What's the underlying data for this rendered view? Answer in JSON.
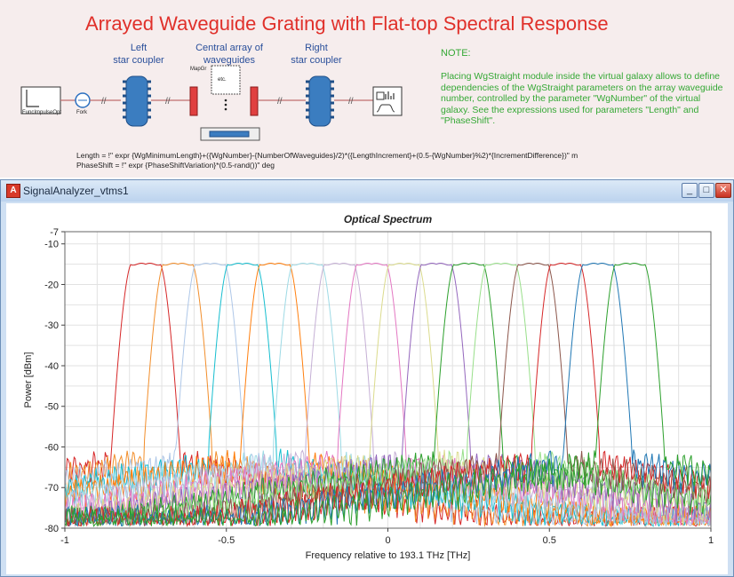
{
  "schematic": {
    "title": "Arrayed Waveguide Grating with Flat-top Spectral Response",
    "left_label_1": "Left",
    "left_label_2": "star coupler",
    "central_label_1": "Central array of",
    "central_label_2": "waveguides",
    "right_label_1": "Right",
    "right_label_2": "star coupler",
    "note_title": "NOTE:",
    "note_text": "Placing WgStraight module inside the virtual galaxy allows to define dependencies of the WgStraight parameters on the array waveguide number, controlled by the parameter \"WgNumber\" of the virtual galaxy. See the expressions used for parameters \"Length\" and \"PhaseShift\".",
    "expr_length": "Length = !\" expr {WgMinimumLength}+({WgNumber}-{NumberOfWaveguides}/2)*({LengthIncrement}+(0.5-{WgNumber}%2)*{IncrementDifference})\" m",
    "expr_phase": "PhaseShift = !\" expr {PhaseShiftVariation}*(0.5-rand())\" deg",
    "block_impulse": "FuncImpulseOpt",
    "block_fork": "Fork",
    "block_mapgr": "MapGr",
    "block_etc": "etc."
  },
  "window": {
    "title": "SignalAnalyzer_vtms1",
    "icon_letter": "A",
    "minimize": "_",
    "maximize": "□",
    "close": "✕"
  },
  "chart_data": {
    "type": "line",
    "title": "Optical Spectrum",
    "xlabel": "Frequency relative to 193.1 THz [THz]",
    "ylabel": "Power [dBm]",
    "xlim": [
      -1,
      1
    ],
    "ylim": [
      -80,
      -7
    ],
    "xticks": [
      -1,
      -0.5,
      0,
      0.5,
      1
    ],
    "xtick_labels": [
      "-1",
      "-0.5",
      "0",
      "0.5",
      "1"
    ],
    "yticks": [
      -7,
      -10,
      -20,
      -30,
      -40,
      -50,
      -60,
      -70,
      -80
    ],
    "ytick_labels": [
      "-7",
      "-10",
      "-20",
      "-30",
      "-40",
      "-50",
      "-60",
      "-70",
      "-80"
    ],
    "grid": true,
    "passband_peak_dbm": -15,
    "floor_dbm": -72,
    "channel_spacing_thz": 0.1,
    "flat_top_width_thz": 0.09,
    "series": [
      {
        "center": -0.75,
        "color": "#d62728"
      },
      {
        "center": -0.65,
        "color": "#f28e2b"
      },
      {
        "center": -0.55,
        "color": "#aec7e8"
      },
      {
        "center": -0.45,
        "color": "#17becf"
      },
      {
        "center": -0.35,
        "color": "#ff7f0e"
      },
      {
        "center": -0.25,
        "color": "#9edae5"
      },
      {
        "center": -0.15,
        "color": "#c5b0d5"
      },
      {
        "center": -0.05,
        "color": "#e377c2"
      },
      {
        "center": 0.05,
        "color": "#dbdb8d"
      },
      {
        "center": 0.15,
        "color": "#9467bd"
      },
      {
        "center": 0.25,
        "color": "#2ca02c"
      },
      {
        "center": 0.35,
        "color": "#98df8a"
      },
      {
        "center": 0.45,
        "color": "#8c564b"
      },
      {
        "center": 0.55,
        "color": "#d62728"
      },
      {
        "center": 0.65,
        "color": "#1f77b4"
      },
      {
        "center": 0.75,
        "color": "#2ca02c"
      }
    ]
  }
}
